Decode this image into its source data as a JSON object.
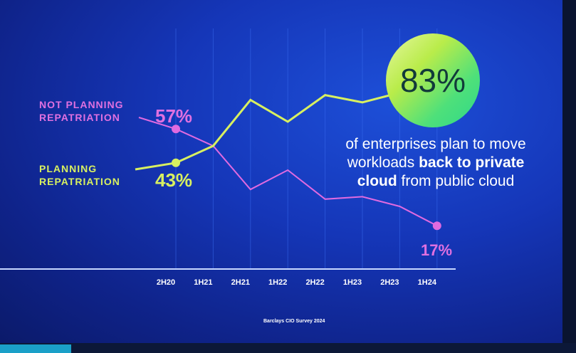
{
  "chart_data": {
    "type": "line",
    "categories": [
      "2H20",
      "1H21",
      "2H21",
      "1H22",
      "2H22",
      "1H23",
      "2H23",
      "1H24"
    ],
    "series": [
      {
        "name": "NOT PLANNING REPATRIATION",
        "color": "#e06ae0",
        "values": [
          57,
          50,
          32,
          40,
          28,
          29,
          25,
          17
        ]
      },
      {
        "name": "PLANNING REPATRIATION",
        "color": "#d8f060",
        "values": [
          43,
          50,
          69,
          60,
          71,
          68,
          72,
          83
        ]
      }
    ],
    "data_labels": {
      "not_planning_start": "57%",
      "planning_start": "43%",
      "not_planning_end": "17%",
      "planning_end": "83%"
    },
    "grid": "vertical",
    "legend": "left"
  },
  "callout": {
    "value": "83%",
    "text_1": "of enterprises plan to move workloads ",
    "text_bold_1": "back to private cloud",
    "text_2": " from public cloud"
  },
  "source": "Barclays CIO Survey 2024"
}
